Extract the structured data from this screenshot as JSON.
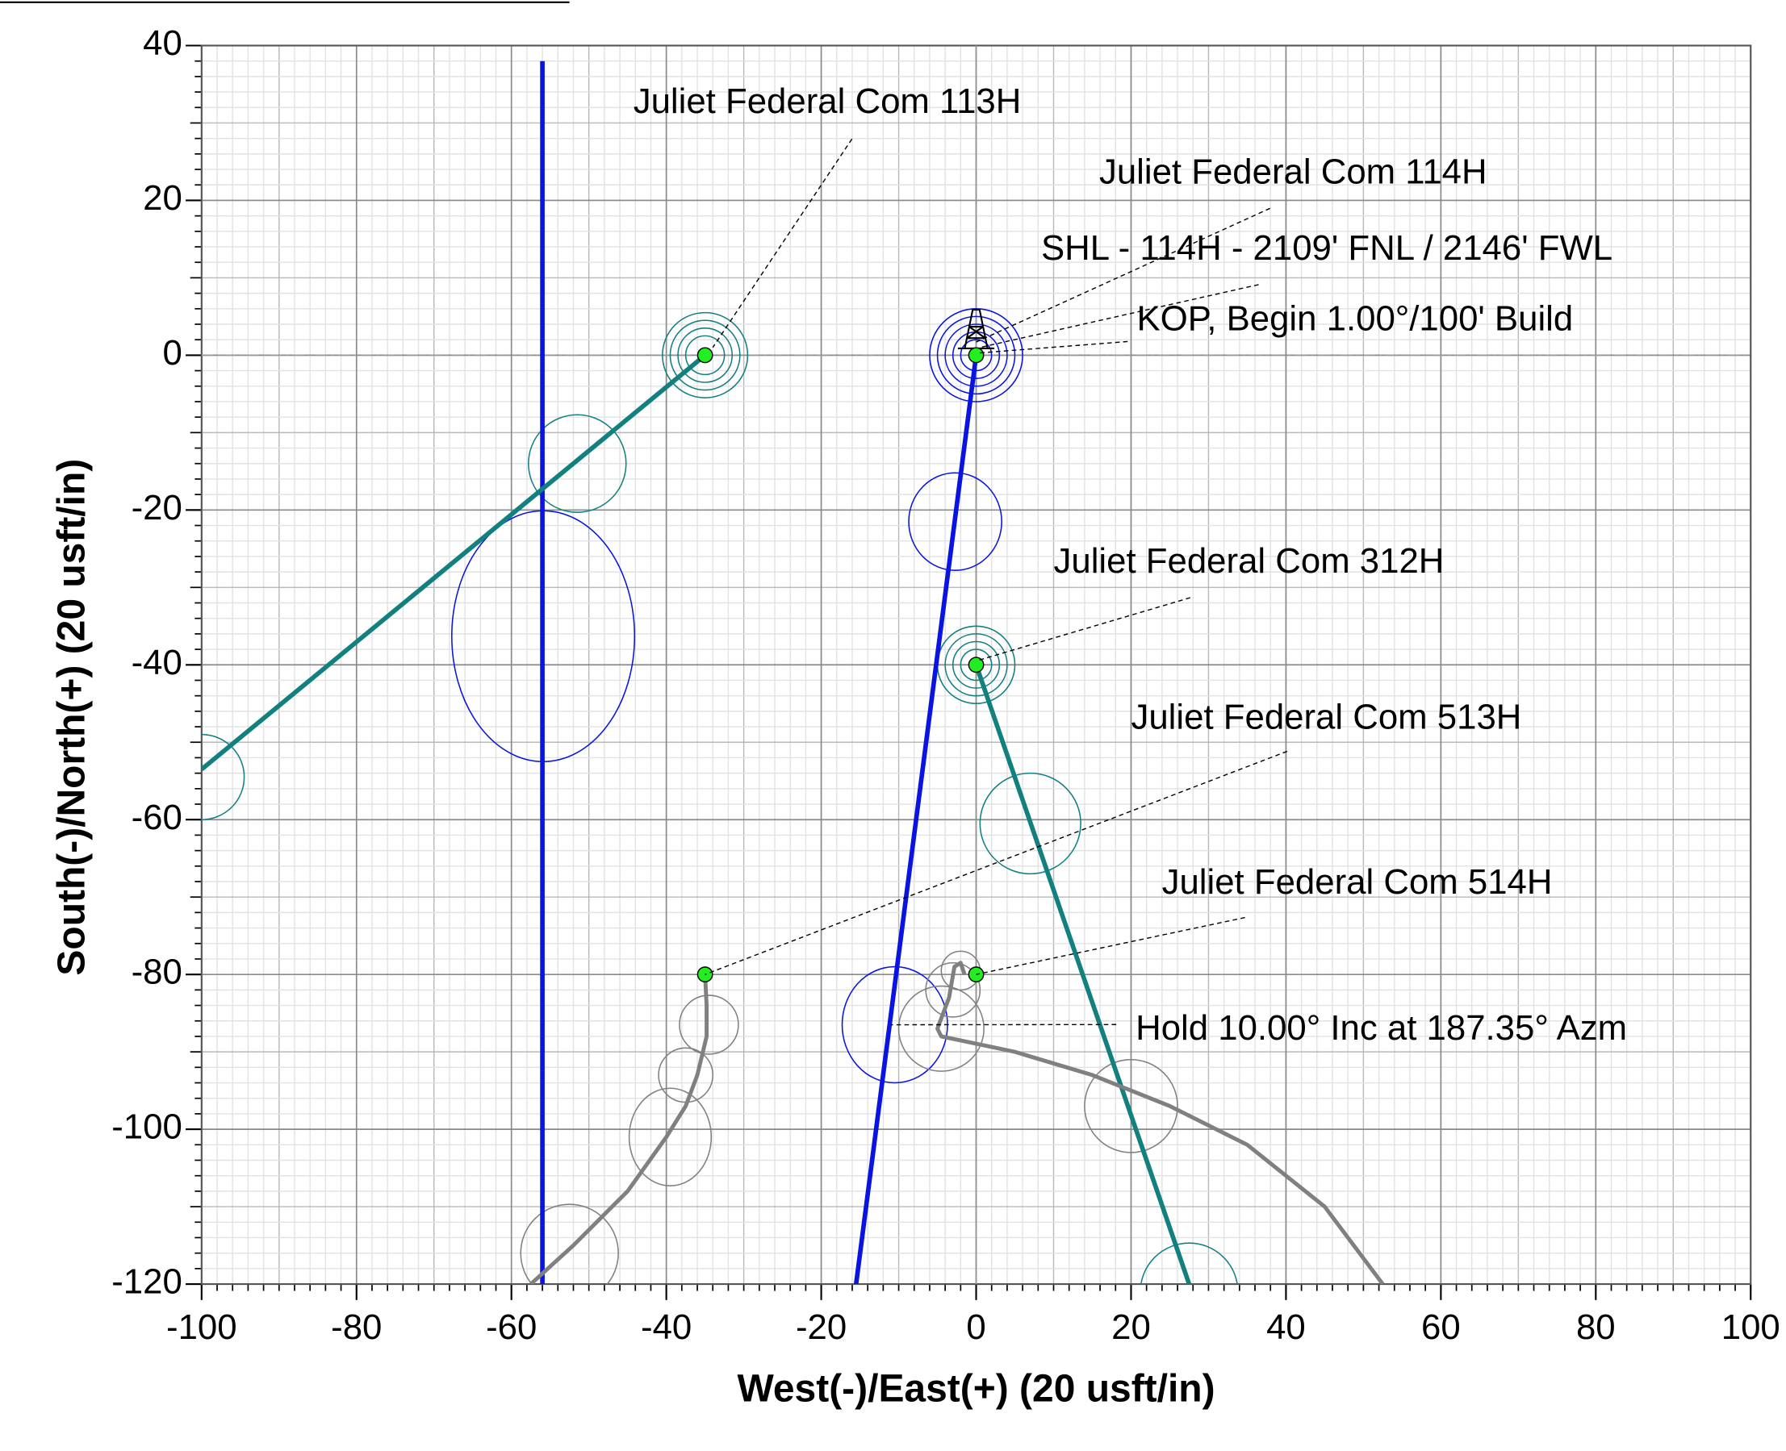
{
  "chart_data": {
    "type": "line",
    "x_label": "West(-)/East(+) (20 usft/in)",
    "y_label": "South(-)/North(+) (20 usft/in)",
    "xlim": [
      -100,
      100
    ],
    "xticks": [
      -100,
      -80,
      -60,
      -40,
      -20,
      0,
      20,
      40,
      60,
      80,
      100
    ],
    "ylim": [
      -120,
      40
    ],
    "yticks": [
      -120,
      -100,
      -80,
      -60,
      -40,
      -20,
      0,
      20,
      40
    ],
    "grid": true,
    "series": [
      {
        "color": "#0a14e0",
        "x": [
          -56,
          -56
        ],
        "values": [
          38,
          -120
        ]
      },
      {
        "color": "#0a14e0",
        "x": [
          0,
          -15.5
        ],
        "values": [
          0,
          -120
        ]
      },
      {
        "color": "#138080",
        "x": [
          -35,
          -100
        ],
        "values": [
          0,
          -53.5
        ]
      },
      {
        "color": "#138080",
        "x": [
          0,
          27.5
        ],
        "values": [
          -40,
          -120
        ]
      },
      {
        "color": "#808080",
        "x": [
          -35,
          -34.8,
          -34.8,
          -36,
          -37.5,
          -40,
          -45,
          -52,
          -57.5
        ],
        "values": [
          -80,
          -84,
          -88,
          -93,
          -97,
          -101,
          -108,
          -115,
          -120
        ]
      },
      {
        "color": "#808080",
        "x": [
          -1.5,
          -2,
          -2.8,
          -3.5,
          -5,
          -4.5,
          5,
          15,
          25,
          35,
          45,
          52.5
        ],
        "values": [
          -80,
          -78.5,
          -79,
          -83,
          -87,
          -88,
          -90,
          -93,
          -97,
          -102,
          -110,
          -120
        ]
      }
    ],
    "points": {
      "color": "#22ee22",
      "x": [
        -35,
        0,
        0,
        -35,
        0
      ],
      "values": [
        0,
        0,
        -40,
        -80,
        -80
      ]
    },
    "ellipses": [
      {
        "color": "#138080",
        "x": -35,
        "y": 0,
        "rx": 5.5,
        "ry": 5.5
      },
      {
        "color": "#138080",
        "x": -35,
        "y": 0,
        "rx": 4.5,
        "ry": 4.5
      },
      {
        "color": "#138080",
        "x": -35,
        "y": 0,
        "rx": 3.5,
        "ry": 3.5
      },
      {
        "color": "#138080",
        "x": -35,
        "y": 0,
        "rx": 2.5,
        "ry": 2.5
      },
      {
        "color": "#0a14e0",
        "x": 0,
        "y": 0,
        "rx": 6,
        "ry": 6
      },
      {
        "color": "#0a14e0",
        "x": 0,
        "y": 0,
        "rx": 5,
        "ry": 5
      },
      {
        "color": "#0a14e0",
        "x": 0,
        "y": 0,
        "rx": 4,
        "ry": 4
      },
      {
        "color": "#0a14e0",
        "x": 0,
        "y": 0,
        "rx": 3,
        "ry": 3
      },
      {
        "color": "#0a14e0",
        "x": 0,
        "y": 0,
        "rx": 2,
        "ry": 2
      },
      {
        "color": "#138080",
        "x": -51.5,
        "y": -14,
        "rx": 6.3,
        "ry": 6.3
      },
      {
        "color": "#0a14e0",
        "x": -55.9,
        "y": -36.3,
        "rx": 11.8,
        "ry": 16.2
      },
      {
        "color": "#0a14e0",
        "x": -2.7,
        "y": -21.5,
        "rx": 6,
        "ry": 6.3
      },
      {
        "color": "#138080",
        "x": 0,
        "y": -40,
        "rx": 5,
        "ry": 5
      },
      {
        "color": "#138080",
        "x": 0,
        "y": -40,
        "rx": 4,
        "ry": 4
      },
      {
        "color": "#138080",
        "x": 0,
        "y": -40,
        "rx": 3,
        "ry": 3
      },
      {
        "color": "#138080",
        "x": 0,
        "y": -40,
        "rx": 2,
        "ry": 2
      },
      {
        "color": "#138080",
        "x": 7,
        "y": -60.5,
        "rx": 6.5,
        "ry": 6.5
      },
      {
        "color": "#138080",
        "x": -100,
        "y": -54.5,
        "rx": 5.5,
        "ry": 5.5
      },
      {
        "color": "#0a14e0",
        "x": -10.5,
        "y": -86.5,
        "rx": 6.8,
        "ry": 7.5
      },
      {
        "color": "#808080",
        "x": -34.5,
        "y": -86.5,
        "rx": 3.8,
        "ry": 3.8
      },
      {
        "color": "#808080",
        "x": -37.5,
        "y": -93,
        "rx": 3.5,
        "ry": 3.5
      },
      {
        "color": "#808080",
        "x": -39.5,
        "y": -101,
        "rx": 5.3,
        "ry": 6.3
      },
      {
        "color": "#808080",
        "x": -52.5,
        "y": -116,
        "rx": 6.3,
        "ry": 6.3
      },
      {
        "color": "#808080",
        "x": -2,
        "y": -79.5,
        "rx": 2.5,
        "ry": 2.5
      },
      {
        "color": "#808080",
        "x": -3,
        "y": -82,
        "rx": 3.5,
        "ry": 3.5
      },
      {
        "color": "#808080",
        "x": -4.5,
        "y": -87,
        "rx": 5.5,
        "ry": 5.5
      },
      {
        "color": "#808080",
        "x": 20,
        "y": -97,
        "rx": 6,
        "ry": 6
      },
      {
        "color": "#138080",
        "x": 27.5,
        "y": -121,
        "rx": 6.3,
        "ry": 6.3
      }
    ],
    "annotations": [
      {
        "text": "Juliet Federal Com 113H",
        "x": -34,
        "y": 1
      },
      {
        "text": "Juliet Federal Com 114H",
        "x": 0,
        "y": 1.7
      },
      {
        "text": "SHL - 114H - 2109' FNL / 2146' FWL",
        "x": 0.5,
        "y": 1
      },
      {
        "text": "KOP, Begin 1.00°/100' Build",
        "x": 0.5,
        "y": 0.3
      },
      {
        "text": "Juliet Federal Com 312H",
        "x": 0,
        "y": -39.5
      },
      {
        "text": "Juliet Federal Com 513H",
        "x": -35,
        "y": -80
      },
      {
        "text": "Juliet Federal Com 514H",
        "x": 0,
        "y": -80
      },
      {
        "text": "Hold 10.00° Inc at 187.35° Azm",
        "x": -11,
        "y": -86.5
      }
    ]
  }
}
